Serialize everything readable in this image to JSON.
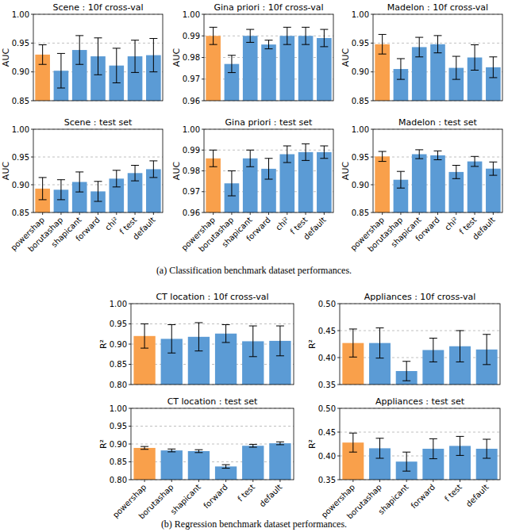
{
  "chart_data": [
    {
      "type": "bar",
      "title": "Scene : 10f cross-val",
      "ylabel": "AUC",
      "categories": [
        "powershap",
        "borutashap",
        "shapicant",
        "forward",
        "chi²",
        "f test",
        "default"
      ],
      "values": [
        0.93,
        0.902,
        0.938,
        0.927,
        0.911,
        0.927,
        0.929
      ],
      "errors": [
        0.017,
        0.03,
        0.025,
        0.032,
        0.03,
        0.028,
        0.029
      ],
      "colors": [
        "#f9a04b",
        "#5b9bd5",
        "#5b9bd5",
        "#5b9bd5",
        "#5b9bd5",
        "#5b9bd5",
        "#5b9bd5"
      ],
      "ylim": [
        0.85,
        1.0
      ],
      "yticks": [
        0.85,
        {
          "value": 0.9,
          "label": "0.90"
        },
        0.95,
        {
          "value": 1,
          "label": "1.00"
        }
      ],
      "grid": true,
      "tick_labels": "y"
    },
    {
      "type": "bar",
      "title": "Gina priori : 10f cross-val",
      "ylabel": "AUC",
      "categories": [
        "powershap",
        "borutashap",
        "shapicant",
        "forward",
        "chi²",
        "f test",
        "default"
      ],
      "values": [
        0.99,
        0.977,
        0.99,
        0.986,
        0.99,
        0.99,
        0.989
      ],
      "errors": [
        0.004,
        0.004,
        0.003,
        0.002,
        0.004,
        0.004,
        0.004
      ],
      "colors": [
        "#f9a04b",
        "#5b9bd5",
        "#5b9bd5",
        "#5b9bd5",
        "#5b9bd5",
        "#5b9bd5",
        "#5b9bd5"
      ],
      "ylim": [
        0.96,
        1.0
      ],
      "yticks": [
        0.96,
        0.97,
        0.98,
        0.99,
        {
          "value": 1,
          "label": "1.00"
        }
      ],
      "grid": true,
      "tick_labels": "y"
    },
    {
      "type": "bar",
      "title": "Madelon : 10f cross-val",
      "ylabel": "AUC",
      "categories": [
        "powershap",
        "borutashap",
        "shapicant",
        "forward",
        "chi²",
        "f test",
        "default"
      ],
      "values": [
        0.948,
        0.905,
        0.943,
        0.948,
        0.907,
        0.925,
        0.908
      ],
      "errors": [
        0.017,
        0.018,
        0.017,
        0.015,
        0.02,
        0.022,
        0.018
      ],
      "colors": [
        "#f9a04b",
        "#5b9bd5",
        "#5b9bd5",
        "#5b9bd5",
        "#5b9bd5",
        "#5b9bd5",
        "#5b9bd5"
      ],
      "ylim": [
        0.85,
        1.0
      ],
      "yticks": [
        0.85,
        {
          "value": 0.9,
          "label": "0.90"
        },
        0.95,
        {
          "value": 1,
          "label": "1.00"
        }
      ],
      "grid": true,
      "tick_labels": "y"
    },
    {
      "type": "bar",
      "title": "Scene : test set",
      "ylabel": "AUC",
      "categories": [
        "powershap",
        "borutashap",
        "shapicant",
        "forward",
        "chi²",
        "f test",
        "default"
      ],
      "values": [
        0.893,
        0.891,
        0.905,
        0.888,
        0.911,
        0.921,
        0.928
      ],
      "errors": [
        0.02,
        0.018,
        0.018,
        0.018,
        0.015,
        0.014,
        0.015
      ],
      "colors": [
        "#f9a04b",
        "#5b9bd5",
        "#5b9bd5",
        "#5b9bd5",
        "#5b9bd5",
        "#5b9bd5",
        "#5b9bd5"
      ],
      "ylim": [
        0.85,
        1.0
      ],
      "yticks": [
        0.85,
        {
          "value": 0.9,
          "label": "0.90"
        },
        0.95,
        {
          "value": 1,
          "label": "1.00"
        }
      ],
      "grid": true
    },
    {
      "type": "bar",
      "title": "Gina priori : test set",
      "ylabel": "AUC",
      "categories": [
        "powershap",
        "borutashap",
        "shapicant",
        "forward",
        "chi²",
        "f test",
        "default"
      ],
      "values": [
        0.986,
        0.974,
        0.986,
        0.981,
        0.988,
        0.989,
        0.989
      ],
      "errors": [
        0.004,
        0.006,
        0.004,
        0.005,
        0.004,
        0.004,
        0.003
      ],
      "colors": [
        "#f9a04b",
        "#5b9bd5",
        "#5b9bd5",
        "#5b9bd5",
        "#5b9bd5",
        "#5b9bd5",
        "#5b9bd5"
      ],
      "ylim": [
        0.96,
        1.0
      ],
      "yticks": [
        0.96,
        0.97,
        0.98,
        0.99,
        {
          "value": 1,
          "label": "1.00"
        }
      ],
      "grid": true
    },
    {
      "type": "bar",
      "title": "Madelon : test set",
      "ylabel": "AUC",
      "categories": [
        "powershap",
        "borutashap",
        "shapicant",
        "forward",
        "chi²",
        "f test",
        "default"
      ],
      "values": [
        0.951,
        0.909,
        0.955,
        0.953,
        0.923,
        0.942,
        0.929
      ],
      "errors": [
        0.009,
        0.015,
        0.008,
        0.008,
        0.012,
        0.009,
        0.012
      ],
      "colors": [
        "#f9a04b",
        "#5b9bd5",
        "#5b9bd5",
        "#5b9bd5",
        "#5b9bd5",
        "#5b9bd5",
        "#5b9bd5"
      ],
      "ylim": [
        0.85,
        1.0
      ],
      "yticks": [
        0.85,
        {
          "value": 0.9,
          "label": "0.90"
        },
        0.95,
        {
          "value": 1,
          "label": "1.00"
        }
      ],
      "grid": true
    },
    {
      "type": "bar",
      "title": "CT location : 10f cross-val",
      "ylabel": "R²",
      "categories": [
        "powershap",
        "borutashap",
        "shapicant",
        "forward",
        "f test",
        "default"
      ],
      "values": [
        0.92,
        0.913,
        0.918,
        0.926,
        0.907,
        0.908
      ],
      "errors": [
        0.03,
        0.035,
        0.035,
        0.022,
        0.038,
        0.037
      ],
      "colors": [
        "#f9a04b",
        "#5b9bd5",
        "#5b9bd5",
        "#5b9bd5",
        "#5b9bd5",
        "#5b9bd5"
      ],
      "ylim": [
        0.8,
        1.0
      ],
      "yticks": [
        {
          "value": 0.8,
          "label": "0.80"
        },
        0.85,
        {
          "value": 0.9,
          "label": "0.90"
        },
        0.95,
        {
          "value": 1,
          "label": "1.00"
        }
      ],
      "grid": true,
      "tick_labels": "y"
    },
    {
      "type": "bar",
      "title": "Appliances : 10f cross-val",
      "ylabel": "R²",
      "categories": [
        "powershap",
        "borutashap",
        "shapicant",
        "forward",
        "f test",
        "default"
      ],
      "values": [
        0.427,
        0.427,
        0.375,
        0.414,
        0.421,
        0.415
      ],
      "errors": [
        0.026,
        0.028,
        0.018,
        0.022,
        0.029,
        0.028
      ],
      "colors": [
        "#f9a04b",
        "#5b9bd5",
        "#5b9bd5",
        "#5b9bd5",
        "#5b9bd5",
        "#5b9bd5"
      ],
      "ylim": [
        0.35,
        0.5
      ],
      "yticks": [
        0.35,
        {
          "value": 0.4,
          "label": "0.40"
        },
        0.45,
        {
          "value": 0.5,
          "label": "0.50"
        }
      ],
      "grid": true,
      "tick_labels": "y"
    },
    {
      "type": "bar",
      "title": "CT location : test set",
      "ylabel": "R²",
      "categories": [
        "powershap",
        "borutashap",
        "shapicant",
        "forward",
        "f test",
        "default"
      ],
      "values": [
        0.889,
        0.882,
        0.88,
        0.837,
        0.895,
        0.902
      ],
      "errors": [
        0.004,
        0.004,
        0.004,
        0.005,
        0.004,
        0.004
      ],
      "colors": [
        "#f9a04b",
        "#5b9bd5",
        "#5b9bd5",
        "#5b9bd5",
        "#5b9bd5",
        "#5b9bd5"
      ],
      "ylim": [
        0.8,
        1.0
      ],
      "yticks": [
        {
          "value": 0.8,
          "label": "0.80"
        },
        0.85,
        {
          "value": 0.9,
          "label": "0.90"
        },
        0.95,
        {
          "value": 1,
          "label": "1.00"
        }
      ],
      "grid": true
    },
    {
      "type": "bar",
      "title": "Appliances : test set",
      "ylabel": "R²",
      "categories": [
        "powershap",
        "borutashap",
        "shapicant",
        "forward",
        "f test",
        "default"
      ],
      "values": [
        0.428,
        0.416,
        0.388,
        0.415,
        0.421,
        0.415
      ],
      "errors": [
        0.02,
        0.021,
        0.02,
        0.021,
        0.02,
        0.02
      ],
      "colors": [
        "#f9a04b",
        "#5b9bd5",
        "#5b9bd5",
        "#5b9bd5",
        "#5b9bd5",
        "#5b9bd5"
      ],
      "ylim": [
        0.35,
        0.5
      ],
      "yticks": [
        0.35,
        {
          "value": 0.4,
          "label": "0.40"
        },
        0.45,
        {
          "value": 0.5,
          "label": "0.50"
        }
      ],
      "grid": true
    }
  ],
  "captions": [
    "(a) Classification benchmark dataset performances.",
    "(b) Regression benchmark dataset performances."
  ]
}
